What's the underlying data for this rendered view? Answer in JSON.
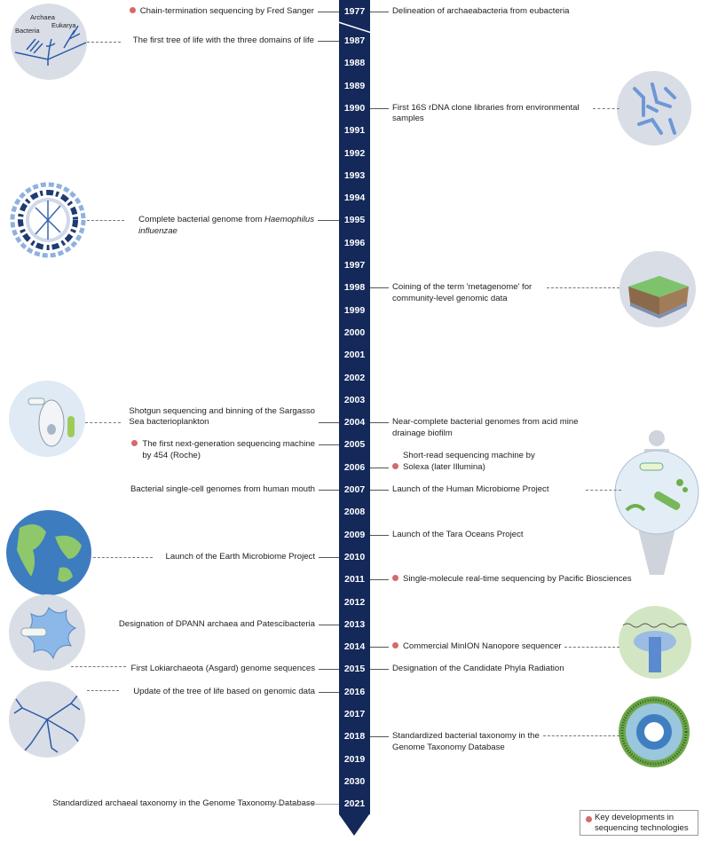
{
  "legend": {
    "label_line1": "Key developments in",
    "label_line2": "sequencing technologies",
    "dot_color": "#d46a6a"
  },
  "timeline_color": "#14295a",
  "years": [
    "1977",
    "1987",
    "1988",
    "1989",
    "1990",
    "1991",
    "1992",
    "1993",
    "1994",
    "1995",
    "1996",
    "1997",
    "1998",
    "1999",
    "2000",
    "2001",
    "2002",
    "2003",
    "2004",
    "2005",
    "2006",
    "2007",
    "2008",
    "2009",
    "2010",
    "2011",
    "2012",
    "2013",
    "2014",
    "2015",
    "2016",
    "2017",
    "2018",
    "2019",
    "2030",
    "2021"
  ],
  "illustration_labels": {
    "archaea": "Archaea",
    "bacteria": "Bacteria",
    "eukarya": "Eukarya"
  },
  "events": [
    {
      "year": "1977",
      "side": "left",
      "sequencing": true,
      "lines": [
        "Chain-termination sequencing by Fred Sanger"
      ]
    },
    {
      "year": "1977",
      "side": "right",
      "sequencing": false,
      "lines": [
        "Delineation of archaeabacteria from eubacteria"
      ]
    },
    {
      "year": "1987",
      "side": "left",
      "sequencing": false,
      "lines": [
        "The first tree of life with the three domains of life"
      ]
    },
    {
      "year": "1990",
      "side": "right",
      "sequencing": false,
      "lines": [
        "First 16S rDNA clone libraries from environmental",
        "samples"
      ]
    },
    {
      "year": "1995",
      "side": "left",
      "sequencing": false,
      "lines": [
        "Complete bacterial genome from ",
        "influenzae"
      ],
      "italic": "Haemophilus"
    },
    {
      "year": "1998",
      "side": "right",
      "sequencing": false,
      "lines": [
        "Coining of the term 'metagenome' for",
        "community-level genomic data"
      ]
    },
    {
      "year": "2004",
      "side": "left",
      "sequencing": false,
      "lines": [
        "Shotgun sequencing and binning of the Sargasso",
        "Sea bacterioplankton"
      ]
    },
    {
      "year": "2004",
      "side": "right",
      "sequencing": false,
      "lines": [
        "Near-complete bacterial genomes from acid mine",
        "drainage biofilm"
      ]
    },
    {
      "year": "2005",
      "side": "left",
      "sequencing": true,
      "lines": [
        "The first next-generation sequencing machine",
        "by 454 (Roche)"
      ]
    },
    {
      "year": "2006",
      "side": "right",
      "sequencing": true,
      "lines": [
        "Short-read sequencing machine by",
        "Solexa (later Illumina)"
      ]
    },
    {
      "year": "2007",
      "side": "left",
      "sequencing": false,
      "lines": [
        "Bacterial single-cell genomes from human mouth"
      ]
    },
    {
      "year": "2007",
      "side": "right",
      "sequencing": false,
      "lines": [
        "Launch of the Human Microbiome Project"
      ]
    },
    {
      "year": "2009",
      "side": "right",
      "sequencing": false,
      "lines": [
        "Launch of the Tara Oceans Project"
      ]
    },
    {
      "year": "2010",
      "side": "left",
      "sequencing": false,
      "lines": [
        "Launch of the Earth Microbiome Project"
      ]
    },
    {
      "year": "2011",
      "side": "right",
      "sequencing": true,
      "lines": [
        "Single-molecule real-time sequencing by Pacific Biosciences"
      ]
    },
    {
      "year": "2013",
      "side": "left",
      "sequencing": false,
      "lines": [
        "Designation of DPANN archaea and Patescibacteria"
      ]
    },
    {
      "year": "2014",
      "side": "right",
      "sequencing": true,
      "lines": [
        "Commercial MinION Nanopore sequencer"
      ]
    },
    {
      "year": "2015",
      "side": "left",
      "sequencing": false,
      "lines": [
        "First Lokiarchaeota (Asgard) genome sequences"
      ]
    },
    {
      "year": "2015",
      "side": "right",
      "sequencing": false,
      "lines": [
        "Designation of the Candidate Phyla Radiation"
      ]
    },
    {
      "year": "2016",
      "side": "left",
      "sequencing": false,
      "lines": [
        "Update of the tree of life based on genomic data"
      ]
    },
    {
      "year": "2018",
      "side": "right",
      "sequencing": false,
      "lines": [
        "Standardized bacterial taxonomy in the",
        "Genome Taxonomy Database"
      ]
    },
    {
      "year": "2021",
      "side": "left",
      "sequencing": false,
      "lines": [
        "Standardized archaeal taxonomy in the Genome Taxonomy Database"
      ]
    }
  ]
}
